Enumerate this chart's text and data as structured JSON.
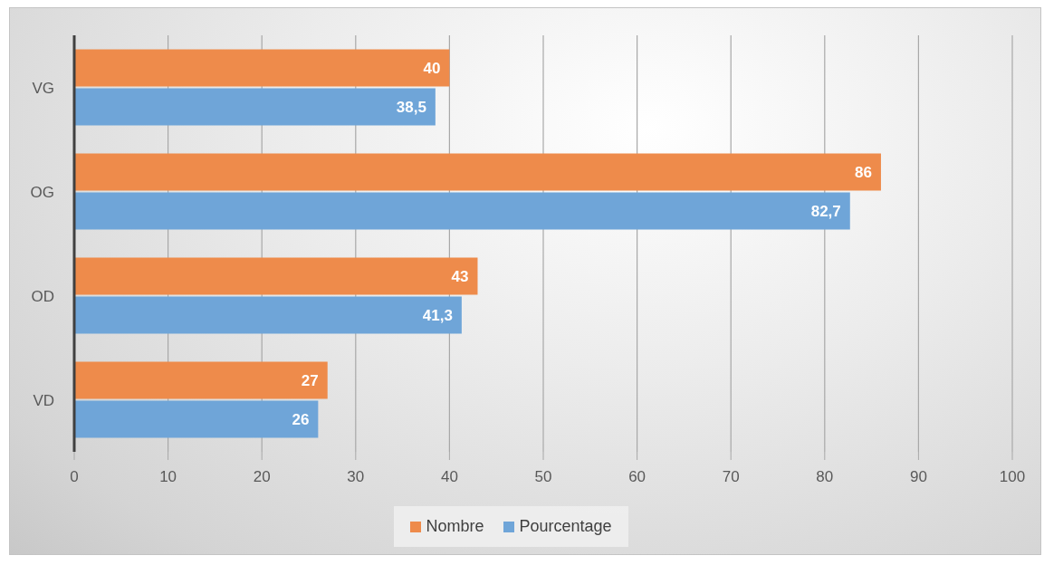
{
  "chart_data": {
    "type": "bar",
    "orientation": "horizontal",
    "categories": [
      "VG",
      "OG",
      "OD",
      "VD"
    ],
    "series": [
      {
        "name": "Nombre",
        "color": "#ee8b4b",
        "values": [
          40,
          86,
          43,
          27
        ],
        "value_labels": [
          "40",
          "86",
          "43",
          "27"
        ]
      },
      {
        "name": "Pourcentage",
        "color": "#6fa5d8",
        "values": [
          38.5,
          82.7,
          41.3,
          26
        ],
        "value_labels": [
          "38,5",
          "82,7",
          "41,3",
          "26"
        ]
      }
    ],
    "xlim": [
      0,
      100
    ],
    "xticks": [
      0,
      10,
      20,
      30,
      40,
      50,
      60,
      70,
      80,
      90,
      100
    ],
    "grid": "x",
    "legend": "bottom"
  }
}
